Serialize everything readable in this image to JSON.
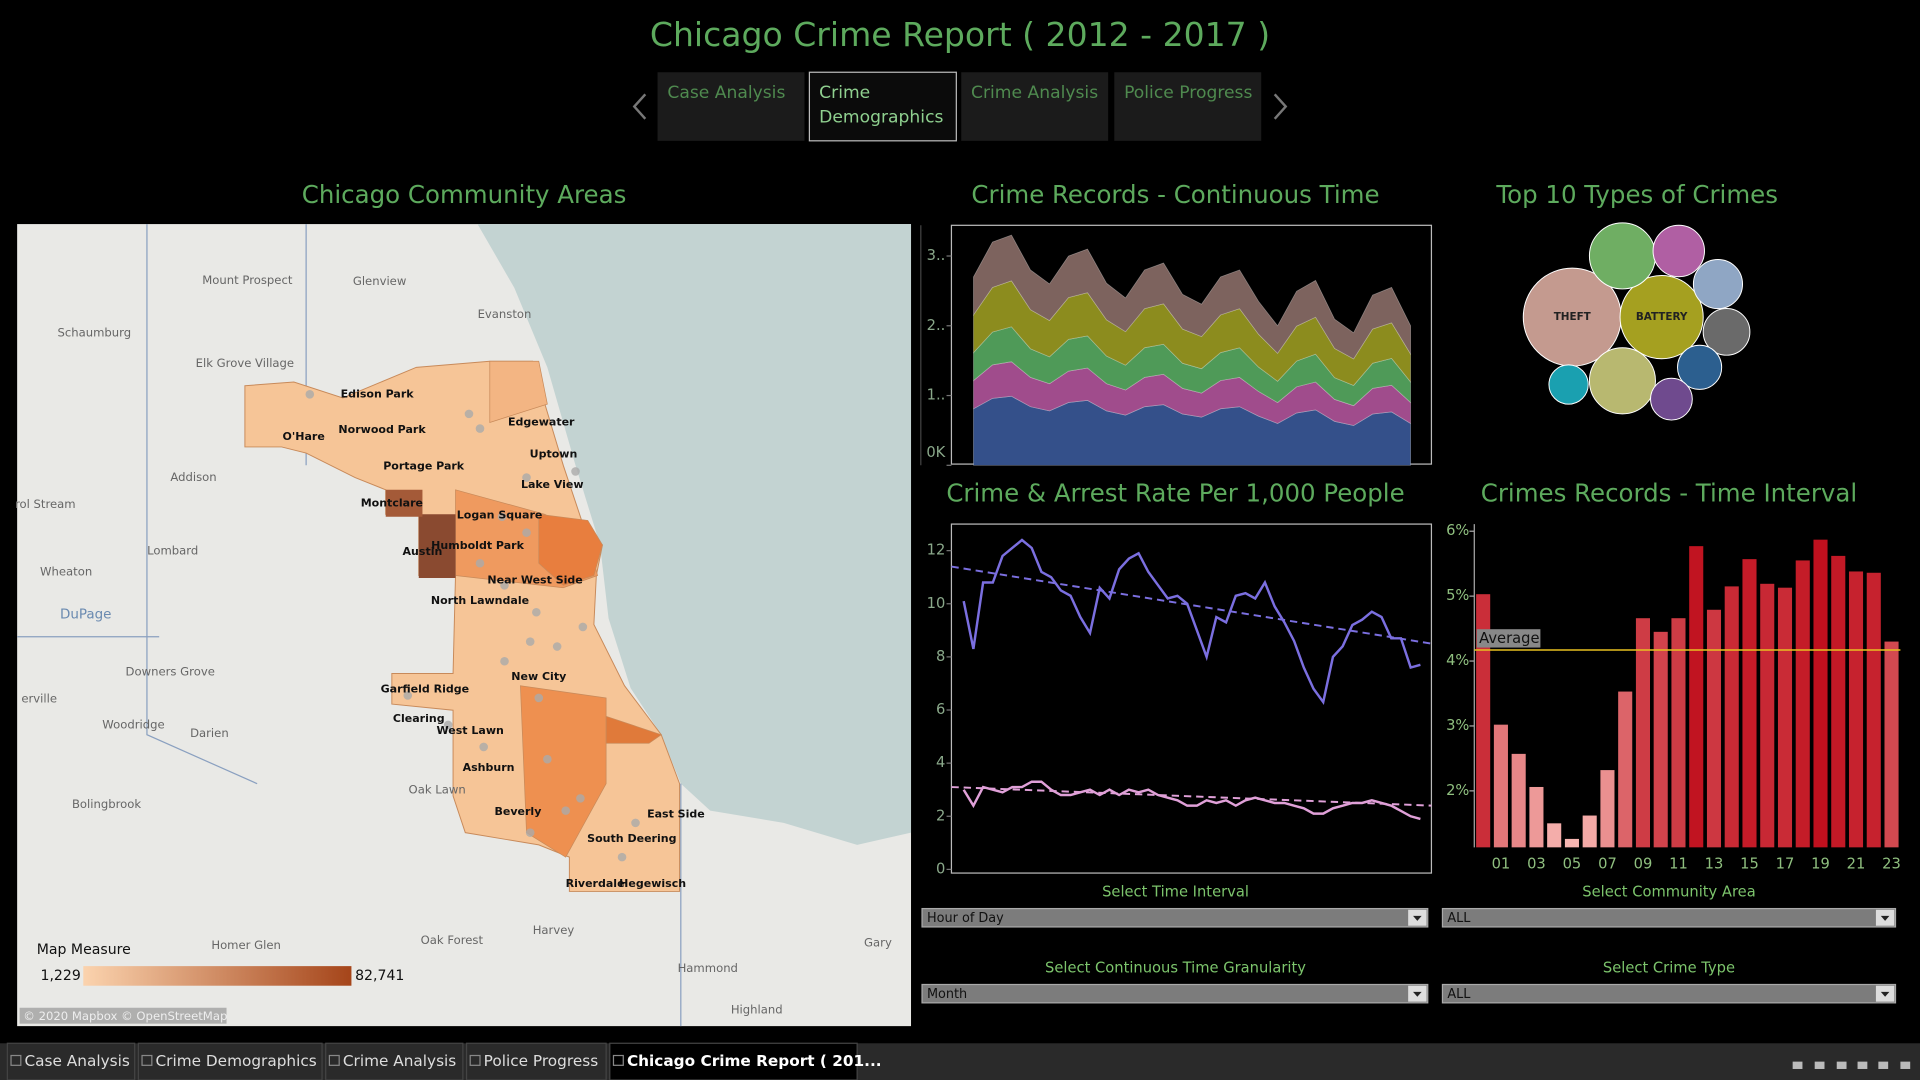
{
  "header": {
    "title": "Chicago Crime Report ( 2012 - 2017 )"
  },
  "nav_tabs": [
    "Case Analysis",
    "Crime Demographics",
    "Crime Analysis",
    "Police Progress"
  ],
  "nav_active": 1,
  "chart_data": [
    {
      "type": "map",
      "title": "Chicago Community Areas",
      "community_labels": [
        "Edison Park",
        "Norwood Park",
        "O'Hare",
        "Portage Park",
        "Montclare",
        "Edgewater",
        "Uptown",
        "Lake View",
        "Logan Square",
        "Humboldt Park",
        "Austin",
        "Near West Side",
        "North Lawndale",
        "New City",
        "Garfield Ridge",
        "Clearing",
        "West Lawn",
        "Ashburn",
        "Beverly",
        "East Side",
        "South Deering",
        "Riverdale",
        "Hegewisch"
      ],
      "background_labels": [
        "Mount Prospect",
        "Glenview",
        "Evanston",
        "Schaumburg",
        "Elk Grove Village",
        "Addison",
        "rol Stream",
        "Lombard",
        "Wheaton",
        "DuPage",
        "Downers Grove",
        "erville",
        "Woodridge",
        "Darien",
        "Bolingbrook",
        "Oak Lawn",
        "Harvey",
        "Oak Forest",
        "Hammond",
        "Gary",
        "Highland",
        "Homer Glen"
      ],
      "legend_title": "Map Measure",
      "legend": [
        {
          "value": 1229,
          "label": "1,229"
        },
        {
          "value": 82741,
          "label": "82,741"
        }
      ],
      "colors": [
        "#fbd3ae",
        "#a5451a"
      ],
      "attribution": "© 2020 Mapbox © OpenStreetMap"
    },
    {
      "type": "area",
      "title": "Crime Records - Continuous Time",
      "ylim": [
        0,
        3440
      ],
      "yticks": [
        {
          "value": 0,
          "label": "0K"
        },
        {
          "value": 1000,
          "label": "1.."
        },
        {
          "value": 2000,
          "label": "2.."
        },
        {
          "value": 3000,
          "label": "3.."
        }
      ],
      "series": [
        {
          "color": "#34508a",
          "values": [
            810,
            960,
            990,
            840,
            780,
            900,
            930,
            780,
            720,
            840,
            870,
            735,
            690,
            810,
            840,
            705,
            600,
            750,
            795,
            630,
            570,
            735,
            765,
            600
          ]
        },
        {
          "color": "#a04c8c",
          "values": [
            405,
            480,
            495,
            420,
            390,
            450,
            465,
            390,
            360,
            420,
            435,
            368,
            345,
            405,
            420,
            353,
            300,
            375,
            398,
            315,
            285,
            368,
            383,
            300
          ]
        },
        {
          "color": "#4f9a58",
          "values": [
            400,
            470,
            500,
            410,
            385,
            455,
            460,
            395,
            355,
            425,
            430,
            360,
            350,
            400,
            425,
            350,
            305,
            370,
            400,
            310,
            290,
            360,
            385,
            295
          ]
        },
        {
          "color": "#8c8c1e",
          "values": [
            540,
            640,
            660,
            560,
            520,
            600,
            620,
            520,
            480,
            560,
            580,
            490,
            460,
            540,
            560,
            470,
            400,
            500,
            530,
            420,
            380,
            490,
            510,
            400
          ]
        },
        {
          "color": "#7d635e",
          "values": [
            545,
            650,
            655,
            570,
            525,
            595,
            625,
            525,
            485,
            555,
            585,
            497,
            465,
            545,
            555,
            472,
            395,
            500,
            527,
            420,
            375,
            487,
            507,
            405
          ]
        }
      ]
    },
    {
      "type": "bubble",
      "title": "Top 10 Types of Crimes",
      "categories": [
        "THEFT",
        "BATTERY",
        null,
        null,
        null,
        null,
        null,
        null,
        null,
        null
      ],
      "values": [
        330000,
        238000,
        150000,
        91000,
        83000,
        75000,
        150000,
        67000,
        53000,
        60000
      ],
      "colors": [
        "#c49a8f",
        "#a5a020",
        "#6fae63",
        "#b05fa3",
        "#8fa6c4",
        "#6a6a6a",
        "#b8b870",
        "#2c5f8f",
        "#1aa0b0",
        "#6f4a8e"
      ]
    },
    {
      "type": "line",
      "title": "Crime & Arrest Rate Per 1,000 People",
      "ylim": [
        0,
        13
      ],
      "yticks": [
        0,
        2,
        4,
        6,
        8,
        10,
        12
      ],
      "series": [
        {
          "color": "#7b6fe0",
          "trend": [
            11.4,
            8.5
          ],
          "values": [
            10.1,
            8.3,
            10.8,
            10.8,
            11.8,
            12.1,
            12.4,
            12.1,
            11.2,
            11.0,
            10.5,
            10.3,
            9.5,
            8.9,
            10.6,
            10.2,
            11.3,
            11.7,
            11.9,
            11.2,
            10.7,
            10.2,
            10.3,
            10.0,
            9.0,
            8.0,
            9.5,
            9.3,
            10.3,
            10.4,
            10.2,
            10.8,
            9.9,
            9.3,
            8.6,
            7.6,
            6.8,
            6.3,
            8.0,
            8.4,
            9.2,
            9.4,
            9.7,
            9.5,
            8.7,
            8.7,
            7.6,
            7.7
          ]
        },
        {
          "color": "#e0a0d8",
          "trend": [
            3.1,
            2.4
          ],
          "values": [
            3.0,
            2.4,
            3.1,
            3.0,
            2.9,
            3.1,
            3.1,
            3.3,
            3.3,
            3.0,
            2.8,
            2.8,
            2.9,
            3.0,
            2.8,
            3.0,
            2.8,
            3.0,
            2.9,
            3.0,
            2.8,
            2.7,
            2.6,
            2.4,
            2.4,
            2.6,
            2.5,
            2.6,
            2.4,
            2.6,
            2.7,
            2.6,
            2.5,
            2.5,
            2.4,
            2.3,
            2.1,
            2.1,
            2.3,
            2.4,
            2.5,
            2.5,
            2.6,
            2.5,
            2.4,
            2.2,
            2.0,
            1.9
          ]
        }
      ]
    },
    {
      "type": "bar",
      "title": "Crimes Records - Time Interval",
      "categories": [
        null,
        "01",
        null,
        "03",
        null,
        "05",
        null,
        "07",
        null,
        "09",
        null,
        "11",
        null,
        "13",
        null,
        "15",
        null,
        "17",
        null,
        "19",
        null,
        "21",
        null,
        "23"
      ],
      "values": [
        5.03,
        3.02,
        2.57,
        2.06,
        1.5,
        1.26,
        1.62,
        2.32,
        3.53,
        4.66,
        4.45,
        4.66,
        5.77,
        4.79,
        5.15,
        5.57,
        5.19,
        5.13,
        5.55,
        5.87,
        5.62,
        5.38,
        5.36,
        4.3
      ],
      "ylim": [
        1.13,
        6.11
      ],
      "yticks": [
        {
          "value": 2,
          "label": "2%"
        },
        {
          "value": 3,
          "label": "3%"
        },
        {
          "value": 4,
          "label": "4%"
        },
        {
          "value": 5,
          "label": "5%"
        },
        {
          "value": 6,
          "label": "6%"
        }
      ],
      "colors": [
        "#f7b6b2",
        "#c0101e"
      ],
      "reference_line": {
        "label": "Average",
        "value": 4.17,
        "color": "#e8c020"
      }
    }
  ],
  "filters": [
    {
      "label": "Select Time Interval",
      "value": "Hour of Day"
    },
    {
      "label": "Select Community Area",
      "value": "ALL"
    },
    {
      "label": "Select Continuous Time Granularity",
      "value": "Month"
    },
    {
      "label": "Select Crime Type",
      "value": "ALL"
    }
  ],
  "sheet_tabs": [
    "Case Analysis",
    "Crime Demographics",
    "Crime Analysis",
    "Police Progress",
    "Chicago Crime Report ( 201..."
  ],
  "sheet_active": 4
}
